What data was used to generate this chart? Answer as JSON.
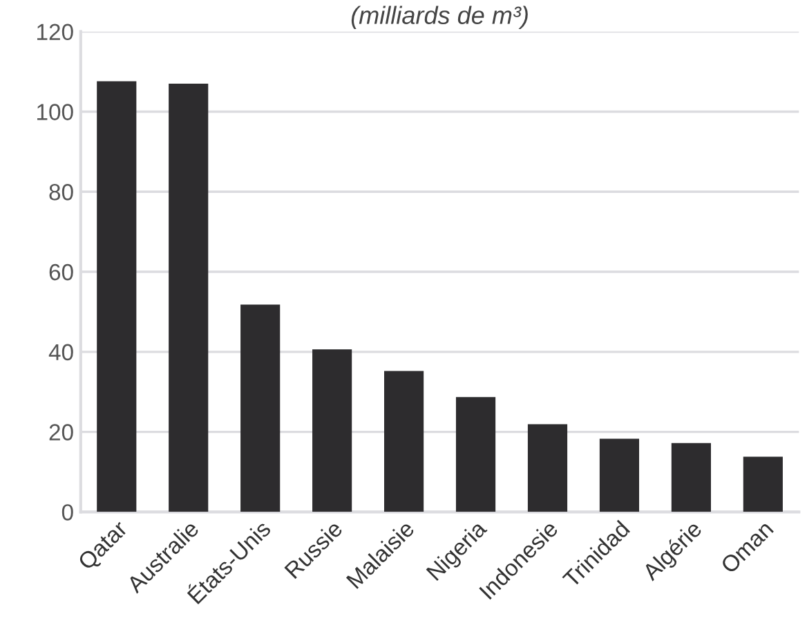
{
  "chart_data": {
    "type": "bar",
    "title": "(milliards de m³)",
    "categories": [
      "Qatar",
      "Australie",
      "États-Unis",
      "Russie",
      "Malaisie",
      "Nigeria",
      "Indonesie",
      "Trinidad",
      "Algérie",
      "Oman"
    ],
    "values": [
      107.6,
      107.0,
      51.8,
      40.6,
      35.2,
      28.7,
      21.9,
      18.3,
      17.2,
      13.8
    ],
    "color": "#2d2c2e",
    "ylim": [
      0,
      120
    ],
    "yticks": [
      0,
      20,
      40,
      60,
      80,
      100,
      120
    ],
    "grid": "y"
  }
}
